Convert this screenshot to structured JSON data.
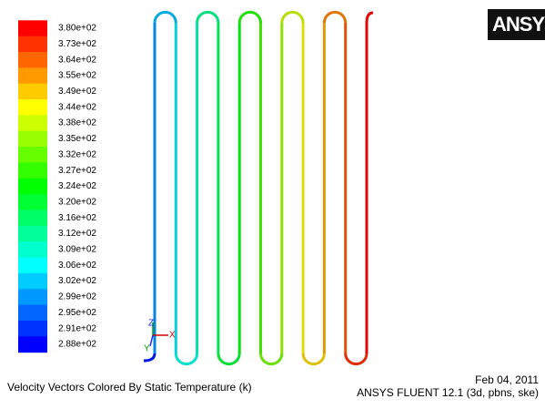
{
  "legend": {
    "labels": [
      "3.80e+02",
      "3.73e+02",
      "3.64e+02",
      "3.55e+02",
      "3.49e+02",
      "3.44e+02",
      "3.38e+02",
      "3.35e+02",
      "3.32e+02",
      "3.27e+02",
      "3.24e+02",
      "3.20e+02",
      "3.16e+02",
      "3.12e+02",
      "3.09e+02",
      "3.06e+02",
      "3.02e+02",
      "2.99e+02",
      "2.95e+02",
      "2.91e+02",
      "2.88e+02"
    ]
  },
  "logo": "ANSYS",
  "axes": {
    "z": "Z",
    "x": "X",
    "y": "Y"
  },
  "caption": "Velocity Vectors Colored By Static Temperature (k)",
  "date": "Feb 04, 2011",
  "version": "ANSYS FLUENT 12.1 (3d, pbns, ske)"
}
